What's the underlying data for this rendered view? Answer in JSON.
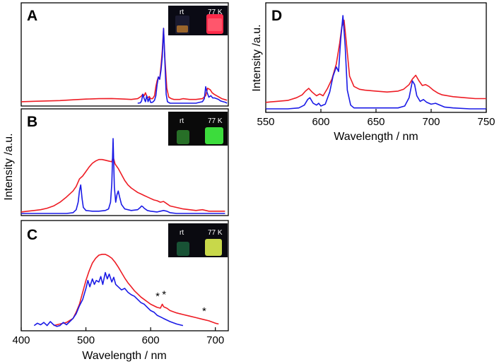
{
  "colors": {
    "red_series": "#ee1c24",
    "blue_series": "#1a1ae6",
    "axis": "#000000"
  },
  "chart_data": [
    {
      "panel": "A",
      "type": "line",
      "xlim": [
        400,
        720
      ],
      "ylim": [
        0,
        1
      ],
      "inset": {
        "left_label": "rt",
        "right_label": "77 K"
      },
      "series": [
        {
          "name": "77 K",
          "color": "#ee1c24",
          "x": [
            400,
            420,
            440,
            460,
            480,
            500,
            520,
            540,
            560,
            570,
            580,
            585,
            588,
            590,
            592,
            595,
            598,
            600,
            603,
            606,
            608,
            610,
            612,
            614,
            616,
            618,
            620,
            622,
            625,
            628,
            632,
            636,
            640,
            645,
            650,
            660,
            670,
            680,
            685,
            688,
            692,
            695,
            698,
            702,
            706,
            710,
            714,
            718
          ],
          "y": [
            0.02,
            0.025,
            0.03,
            0.035,
            0.045,
            0.055,
            0.06,
            0.062,
            0.055,
            0.05,
            0.06,
            0.09,
            0.12,
            0.1,
            0.14,
            0.07,
            0.09,
            0.06,
            0.06,
            0.1,
            0.22,
            0.3,
            0.35,
            0.32,
            0.5,
            0.7,
            1.0,
            0.6,
            0.2,
            0.08,
            0.06,
            0.05,
            0.05,
            0.05,
            0.06,
            0.05,
            0.05,
            0.06,
            0.1,
            0.2,
            0.18,
            0.14,
            0.12,
            0.1,
            0.08,
            0.06,
            0.05,
            0.04
          ]
        },
        {
          "name": "rt",
          "color": "#1a1ae6",
          "x": [
            580,
            584,
            586,
            588,
            590,
            592,
            594,
            596,
            598,
            600,
            602,
            604,
            606,
            608,
            610,
            612,
            614,
            616,
            618,
            620,
            622,
            624,
            626,
            630,
            640,
            650,
            660,
            670,
            675,
            680,
            683,
            685,
            687,
            690,
            693,
            696,
            699,
            702,
            705,
            708,
            712,
            716,
            718
          ],
          "y": [
            0.0,
            0.005,
            0.03,
            0.12,
            0.06,
            0.02,
            0.1,
            0.02,
            0.07,
            0.01,
            0.01,
            0.02,
            0.04,
            0.1,
            0.25,
            0.35,
            0.32,
            0.44,
            0.62,
            1.0,
            0.55,
            0.12,
            0.02,
            0.0,
            0.0,
            0.0,
            0.0,
            0.0,
            0.01,
            0.02,
            0.06,
            0.22,
            0.15,
            0.08,
            0.1,
            0.07,
            0.07,
            0.06,
            0.05,
            0.03,
            0.02,
            0.01,
            0.0
          ]
        }
      ]
    },
    {
      "panel": "B",
      "type": "line",
      "xlim": [
        400,
        720
      ],
      "ylim": [
        0,
        1
      ],
      "inset": {
        "left_label": "rt",
        "right_label": "77 K"
      },
      "series": [
        {
          "name": "77 K",
          "color": "#ee1c24",
          "x": [
            400,
            410,
            420,
            430,
            440,
            450,
            460,
            470,
            480,
            485,
            490,
            495,
            500,
            505,
            510,
            515,
            520,
            525,
            530,
            535,
            540,
            542,
            545,
            550,
            555,
            560,
            565,
            570,
            575,
            580,
            585,
            590,
            595,
            600,
            605,
            610,
            615,
            620,
            625,
            630,
            640,
            650,
            660,
            670,
            680,
            690,
            700,
            710,
            715
          ],
          "y": [
            0.02,
            0.03,
            0.04,
            0.05,
            0.07,
            0.1,
            0.15,
            0.22,
            0.3,
            0.36,
            0.46,
            0.5,
            0.56,
            0.62,
            0.67,
            0.7,
            0.72,
            0.72,
            0.71,
            0.7,
            0.69,
            0.76,
            0.66,
            0.6,
            0.52,
            0.44,
            0.38,
            0.34,
            0.31,
            0.28,
            0.26,
            0.24,
            0.22,
            0.2,
            0.18,
            0.17,
            0.15,
            0.16,
            0.13,
            0.1,
            0.08,
            0.06,
            0.05,
            0.04,
            0.05,
            0.03,
            0.03,
            0.03,
            0.03
          ]
        },
        {
          "name": "rt",
          "color": "#1a1ae6",
          "x": [
            400,
            440,
            470,
            480,
            485,
            488,
            490,
            492,
            494,
            496,
            500,
            510,
            520,
            530,
            535,
            538,
            540,
            542,
            544,
            546,
            548,
            550,
            552,
            555,
            560,
            570,
            580,
            584,
            586,
            588,
            590,
            595,
            600,
            610,
            615,
            620,
            625,
            630,
            640,
            660,
            680,
            700,
            715
          ],
          "y": [
            0.0,
            0.0,
            0.0,
            0.01,
            0.05,
            0.15,
            0.3,
            0.38,
            0.2,
            0.08,
            0.04,
            0.03,
            0.03,
            0.04,
            0.06,
            0.15,
            0.4,
            1.0,
            0.35,
            0.15,
            0.25,
            0.3,
            0.22,
            0.12,
            0.06,
            0.04,
            0.05,
            0.08,
            0.1,
            0.09,
            0.07,
            0.04,
            0.03,
            0.02,
            0.03,
            0.04,
            0.03,
            0.01,
            0.0,
            0.0,
            0.0,
            0.0,
            0.0
          ]
        }
      ]
    },
    {
      "panel": "C",
      "type": "line",
      "xlim": [
        400,
        720
      ],
      "ylim": [
        0,
        1
      ],
      "xticks": [
        400,
        500,
        600,
        700
      ],
      "xlabel": "Wavelength / nm",
      "inset": {
        "left_label": "rt",
        "right_label": "77 K"
      },
      "annotations": [
        {
          "text": "*",
          "x": 612,
          "y": 0.34
        },
        {
          "text": "*",
          "x": 622,
          "y": 0.36
        },
        {
          "text": "*",
          "x": 684,
          "y": 0.15
        }
      ],
      "series": [
        {
          "name": "77 K",
          "color": "#ee1c24",
          "x": [
            450,
            460,
            470,
            480,
            485,
            490,
            495,
            500,
            505,
            510,
            515,
            520,
            525,
            530,
            535,
            540,
            545,
            550,
            555,
            560,
            565,
            570,
            575,
            580,
            585,
            590,
            595,
            600,
            605,
            610,
            615,
            618,
            620,
            622,
            625,
            630,
            640,
            650,
            660,
            670,
            680,
            690,
            700,
            705
          ],
          "y": [
            0.03,
            0.05,
            0.07,
            0.12,
            0.2,
            0.3,
            0.45,
            0.6,
            0.72,
            0.82,
            0.88,
            0.92,
            0.93,
            0.93,
            0.91,
            0.88,
            0.83,
            0.77,
            0.7,
            0.63,
            0.57,
            0.52,
            0.47,
            0.43,
            0.39,
            0.36,
            0.33,
            0.3,
            0.28,
            0.26,
            0.25,
            0.3,
            0.27,
            0.26,
            0.25,
            0.22,
            0.19,
            0.17,
            0.15,
            0.13,
            0.11,
            0.09,
            0.06,
            0.05
          ]
        },
        {
          "name": "rt",
          "color": "#1a1ae6",
          "x": [
            420,
            425,
            430,
            435,
            440,
            445,
            450,
            455,
            460,
            465,
            470,
            475,
            480,
            485,
            490,
            495,
            500,
            503,
            506,
            510,
            513,
            516,
            520,
            523,
            526,
            530,
            533,
            536,
            540,
            543,
            546,
            550,
            555,
            560,
            565,
            570,
            575,
            580,
            585,
            590,
            595,
            600,
            605,
            610,
            615,
            620,
            630,
            640,
            650
          ],
          "y": [
            0.03,
            0.06,
            0.04,
            0.07,
            0.03,
            0.08,
            0.04,
            0.02,
            0.03,
            0.07,
            0.04,
            0.08,
            0.12,
            0.18,
            0.28,
            0.36,
            0.5,
            0.6,
            0.52,
            0.62,
            0.55,
            0.6,
            0.58,
            0.65,
            0.55,
            0.7,
            0.62,
            0.68,
            0.58,
            0.64,
            0.55,
            0.52,
            0.48,
            0.5,
            0.45,
            0.42,
            0.4,
            0.36,
            0.32,
            0.3,
            0.26,
            0.22,
            0.2,
            0.16,
            0.14,
            0.12,
            0.08,
            0.05,
            0.03
          ]
        }
      ]
    },
    {
      "panel": "D",
      "type": "line",
      "xlim": [
        550,
        750
      ],
      "ylim": [
        0,
        1
      ],
      "xticks": [
        550,
        600,
        650,
        700,
        750
      ],
      "xlabel": "Wavelength / nm",
      "ylabel": "Intensity /a.u.",
      "series": [
        {
          "name": "77 K",
          "color": "#ee1c24",
          "x": [
            550,
            560,
            570,
            578,
            583,
            586,
            589,
            592,
            596,
            599,
            602,
            606,
            610,
            614,
            617,
            619,
            621,
            623,
            626,
            630,
            635,
            640,
            650,
            660,
            670,
            675,
            680,
            683,
            686,
            689,
            692,
            695,
            698,
            702,
            706,
            710,
            720,
            730,
            740,
            750
          ],
          "y": [
            0.07,
            0.08,
            0.09,
            0.12,
            0.15,
            0.19,
            0.22,
            0.18,
            0.14,
            0.16,
            0.14,
            0.22,
            0.32,
            0.48,
            0.7,
            0.88,
            0.95,
            0.72,
            0.35,
            0.24,
            0.21,
            0.2,
            0.19,
            0.18,
            0.19,
            0.21,
            0.26,
            0.32,
            0.36,
            0.3,
            0.25,
            0.26,
            0.24,
            0.2,
            0.17,
            0.15,
            0.13,
            0.12,
            0.11,
            0.11
          ]
        },
        {
          "name": "rt",
          "color": "#1a1ae6",
          "x": [
            550,
            570,
            580,
            585,
            588,
            590,
            593,
            596,
            598,
            600,
            604,
            608,
            611,
            614,
            616,
            618,
            620,
            622,
            624,
            627,
            630,
            640,
            660,
            670,
            676,
            680,
            683,
            685,
            687,
            690,
            693,
            696,
            700,
            704,
            708,
            712,
            720,
            735,
            750
          ],
          "y": [
            0.0,
            0.0,
            0.01,
            0.04,
            0.1,
            0.12,
            0.06,
            0.04,
            0.06,
            0.03,
            0.05,
            0.18,
            0.35,
            0.45,
            0.4,
            0.75,
            1.0,
            0.68,
            0.2,
            0.04,
            0.01,
            0.01,
            0.01,
            0.01,
            0.03,
            0.12,
            0.3,
            0.26,
            0.14,
            0.08,
            0.1,
            0.07,
            0.05,
            0.06,
            0.04,
            0.02,
            0.01,
            0.0,
            0.0
          ]
        }
      ]
    }
  ],
  "shared_left": {
    "ylabel": "Intensity /a.u."
  }
}
